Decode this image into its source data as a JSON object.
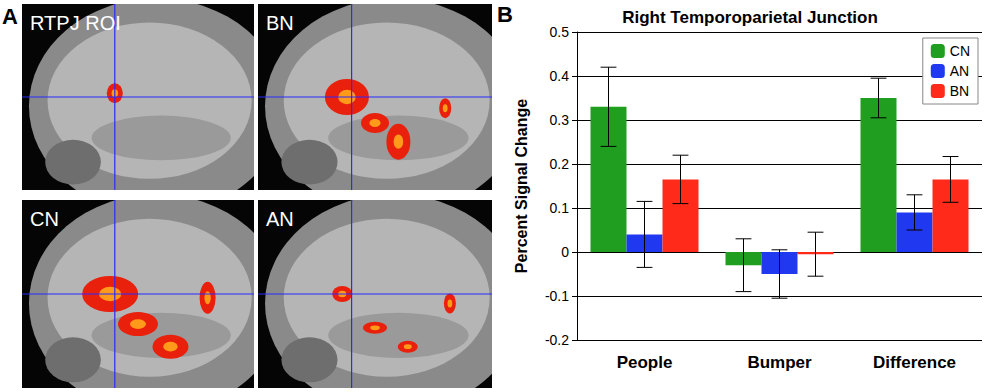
{
  "figure": {
    "panels": [
      {
        "label": "A",
        "images": [
          {
            "label": "RTPJ ROI"
          },
          {
            "label": "BN"
          },
          {
            "label": "CN"
          },
          {
            "label": "AN"
          }
        ]
      },
      {
        "label": "B"
      }
    ]
  },
  "chart_data": {
    "type": "bar",
    "title": "Right Temporoparietal Junction",
    "y_label": "Percent Signal Change",
    "categories": [
      "People",
      "Bumper",
      "Difference"
    ],
    "series": [
      {
        "name": "CN",
        "color": "#1f9e1f",
        "values": [
          0.33,
          -0.03,
          0.35
        ],
        "errors": [
          0.09,
          0.06,
          0.045
        ]
      },
      {
        "name": "AN",
        "color": "#2038f0",
        "values": [
          0.04,
          -0.05,
          0.09
        ],
        "errors": [
          0.075,
          0.055,
          0.04
        ]
      },
      {
        "name": "BN",
        "color": "#ff2a1a",
        "values": [
          0.165,
          -0.005,
          0.165
        ],
        "errors": [
          0.055,
          0.05,
          0.052
        ]
      }
    ],
    "ylim": [
      -0.2,
      0.5
    ],
    "yticks": [
      -0.2,
      -0.1,
      0,
      0.1,
      0.2,
      0.3,
      0.4,
      0.5
    ],
    "grid": true,
    "legend": "upper right"
  }
}
